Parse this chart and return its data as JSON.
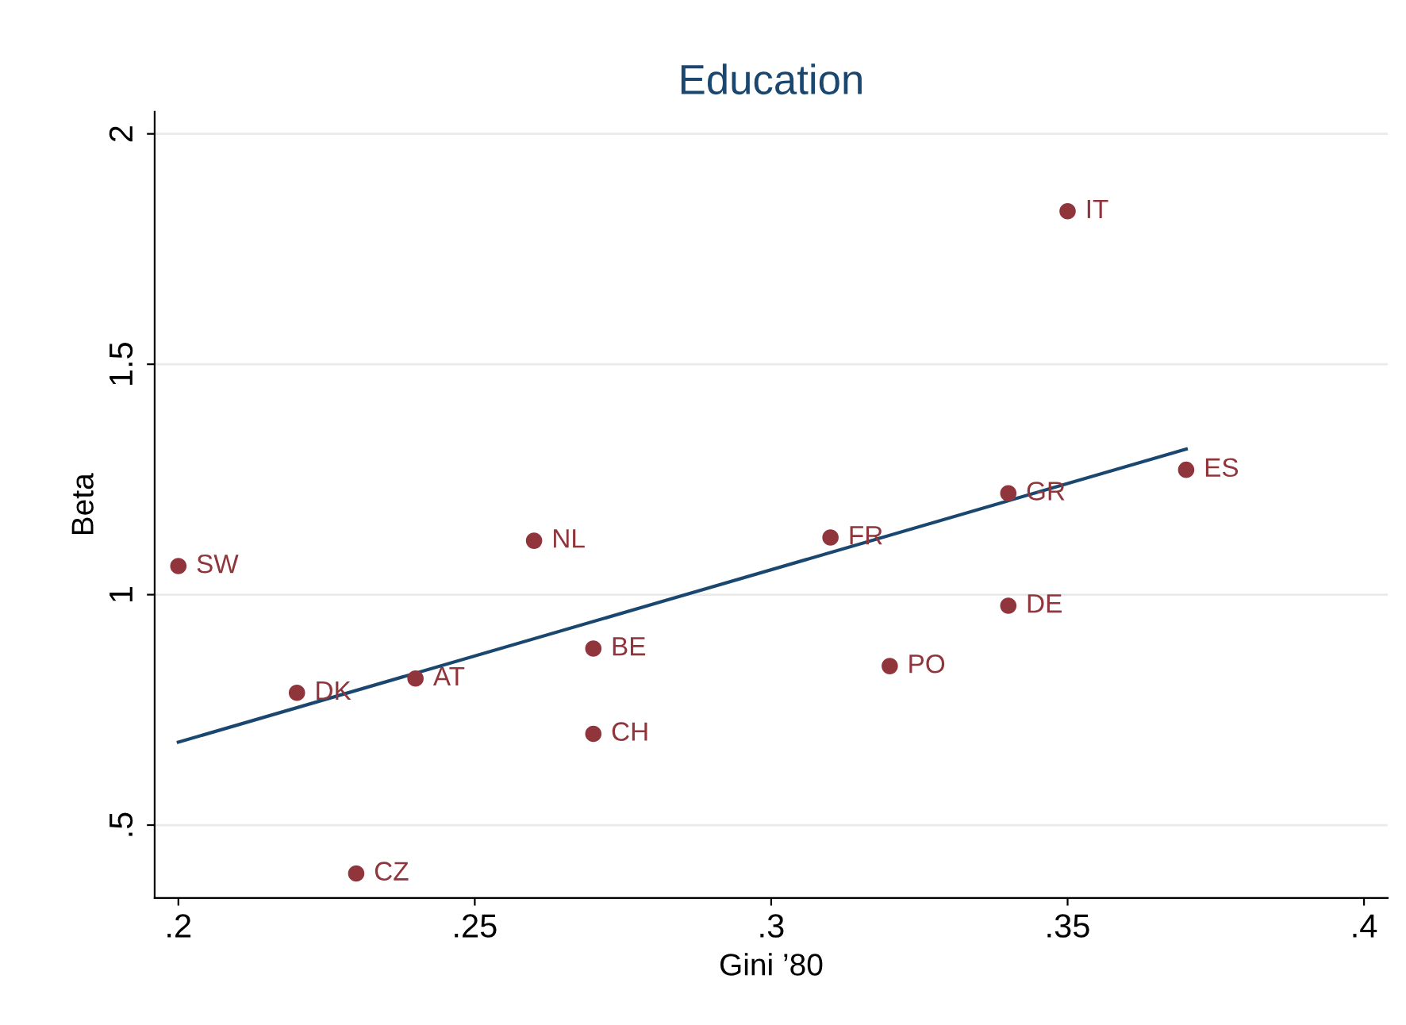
{
  "chart_data": {
    "type": "scatter",
    "title": "Education",
    "xlabel": "Gini ’80",
    "ylabel": "Beta",
    "xlim": [
      0.196,
      0.404
    ],
    "ylim": [
      0.342,
      2.048
    ],
    "xticks": [
      {
        "value": 0.2,
        "label": ".2"
      },
      {
        "value": 0.25,
        "label": ".25"
      },
      {
        "value": 0.3,
        "label": ".3"
      },
      {
        "value": 0.35,
        "label": ".35"
      },
      {
        "value": 0.4,
        "label": ".4"
      }
    ],
    "yticks": [
      {
        "value": 0.5,
        "label": ".5"
      },
      1,
      1.5,
      2
    ],
    "grid": "y",
    "legend": false,
    "series": [
      {
        "marker": "circle",
        "color": "#90353b",
        "x": [
          0.2,
          0.22,
          0.23,
          0.24,
          0.26,
          0.27,
          0.27,
          0.31,
          0.32,
          0.34,
          0.34,
          0.35,
          0.37
        ],
        "values": [
          1.062,
          0.787,
          0.395,
          0.818,
          1.117,
          0.883,
          0.698,
          1.124,
          0.845,
          1.22,
          0.976,
          1.832,
          1.271
        ]
      },
      {
        "type": "line",
        "color": "#1a476f",
        "x": [
          0.2,
          0.37
        ],
        "values": [
          0.68,
          1.316
        ]
      }
    ],
    "annotations": [
      {
        "text": "SW",
        "x": 0.2,
        "y": 1.062
      },
      {
        "text": "DK",
        "x": 0.22,
        "y": 0.787
      },
      {
        "text": "CZ",
        "x": 0.23,
        "y": 0.395
      },
      {
        "text": "AT",
        "x": 0.24,
        "y": 0.818
      },
      {
        "text": "NL",
        "x": 0.26,
        "y": 1.117
      },
      {
        "text": "BE",
        "x": 0.27,
        "y": 0.883
      },
      {
        "text": "CH",
        "x": 0.27,
        "y": 0.698
      },
      {
        "text": "FR",
        "x": 0.31,
        "y": 1.124
      },
      {
        "text": "PO",
        "x": 0.32,
        "y": 0.845
      },
      {
        "text": "GR",
        "x": 0.34,
        "y": 1.22
      },
      {
        "text": "DE",
        "x": 0.34,
        "y": 0.976
      },
      {
        "text": "IT",
        "x": 0.35,
        "y": 1.832
      },
      {
        "text": "ES",
        "x": 0.37,
        "y": 1.271
      }
    ]
  }
}
